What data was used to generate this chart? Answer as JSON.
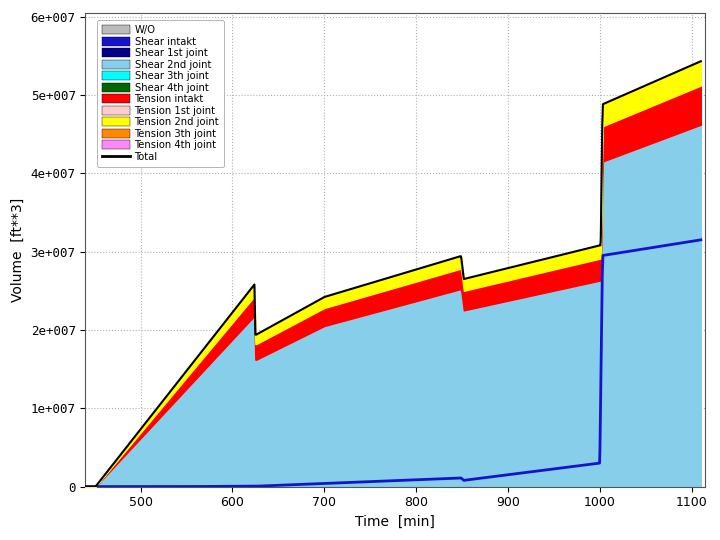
{
  "title": "",
  "xlabel": "Time  [min]",
  "ylabel": "Volume  [ft**3]",
  "xlim": [
    440,
    1115
  ],
  "ylim": [
    0,
    60500000.0
  ],
  "yticks": [
    0,
    10000000.0,
    20000000.0,
    30000000.0,
    40000000.0,
    50000000.0,
    60000000.0
  ],
  "xticks": [
    500,
    600,
    700,
    800,
    900,
    1000,
    1100
  ],
  "bg_color": "#ffffff",
  "grid_color": "#aaaaaa",
  "legend_entries": [
    {
      "label": "W/O",
      "color": "#bbbbbb",
      "type": "patch"
    },
    {
      "label": "Shear intakt",
      "color": "#1414cc",
      "type": "patch"
    },
    {
      "label": "Shear 1st joint",
      "color": "#00008b",
      "type": "patch"
    },
    {
      "label": "Shear 2nd joint",
      "color": "#87ceeb",
      "type": "patch"
    },
    {
      "label": "Shear 3th joint",
      "color": "#00ffff",
      "type": "patch"
    },
    {
      "label": "Shear 4th joint",
      "color": "#006600",
      "type": "patch"
    },
    {
      "label": "Tension intakt",
      "color": "#ff0000",
      "type": "patch"
    },
    {
      "label": "Tension 1st joint",
      "color": "#ffcccc",
      "type": "patch"
    },
    {
      "label": "Tension 2nd joint",
      "color": "#ffff00",
      "type": "patch"
    },
    {
      "label": "Tension 3th joint",
      "color": "#ff8800",
      "type": "patch"
    },
    {
      "label": "Tension 4th joint",
      "color": "#ff88ff",
      "type": "patch"
    },
    {
      "label": "Total",
      "color": "#000000",
      "type": "line"
    }
  ],
  "colors": {
    "wo": "#bbbbbb",
    "shear_intakt": "#1414cc",
    "shear2": "#87ceeb",
    "tension_intakt": "#ff0000",
    "tension2": "#ffff00",
    "total": "#000000"
  }
}
